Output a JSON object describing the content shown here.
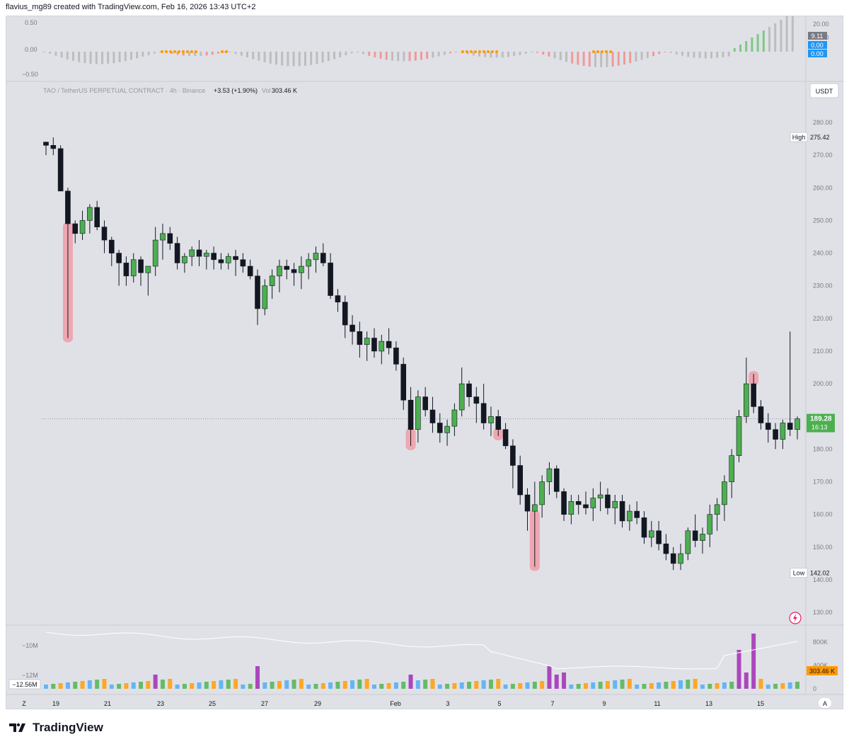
{
  "header": {
    "attribution": "flavius_mg89 created with TradingView.com, Feb 16, 2026 13:43 UTC+2"
  },
  "footer": {
    "brand": "TradingView"
  },
  "oscillator": {
    "y_ticks": [
      "0.50",
      "0.00",
      "−0.50"
    ],
    "right_ticks": [
      "20.00",
      "10.00",
      "0.00"
    ],
    "badges": [
      {
        "text": "9.11",
        "color": "#787b86"
      },
      {
        "text": "0.00",
        "color": "#2196f3"
      },
      {
        "text": "0.00",
        "color": "#2196f3"
      }
    ]
  },
  "legend": {
    "symbol": "TAO / TetherUS PERPETUAL CONTRACT · 4h · Binance",
    "change": "+3.53 (+1.90%)",
    "vol_label": "Vol",
    "vol_value": "303.46 K"
  },
  "price_axis": {
    "currency": "USDT",
    "ticks": [
      "280.00",
      "270.00",
      "260.00",
      "250.00",
      "240.00",
      "230.00",
      "220.00",
      "210.00",
      "200.00",
      "190.00",
      "180.00",
      "170.00",
      "160.00",
      "150.00",
      "140.00",
      "130.00"
    ],
    "high_label": "High",
    "high_value": "275.42",
    "low_label": "Low",
    "low_value": "142.02",
    "last_price": "189.28",
    "countdown": "16:13"
  },
  "volume_pane": {
    "left_ticks": [
      "−10M",
      "−12M"
    ],
    "left_badge": "−12.56M",
    "right_ticks": [
      "800K",
      "400K",
      "0"
    ],
    "right_badge": "303.46 K"
  },
  "time_axis": {
    "left_button": "Z",
    "right_button": "A",
    "labels": [
      "19",
      "21",
      "23",
      "25",
      "27",
      "29",
      "Feb",
      "3",
      "5",
      "7",
      "9",
      "11",
      "13",
      "15"
    ]
  },
  "colors": {
    "up": "#4caf50",
    "down": "#131722",
    "highlight": "#f19ca7",
    "volume_purple": "#ab47bc",
    "volume_orange": "#ffa726",
    "volume_blue": "#64b5f6",
    "volume_green": "#66bb6a"
  },
  "chart_data": {
    "type": "candlestick",
    "timeframe": "4h",
    "x_range": [
      "Jan 18",
      "Feb 16"
    ],
    "ylim": [
      130,
      285
    ],
    "grid": false,
    "high": 275.42,
    "low": 142.02,
    "last": 189.28,
    "candles": [
      [
        274,
        274,
        270,
        273
      ],
      [
        273,
        275.42,
        270,
        272
      ],
      [
        272,
        273,
        259,
        259
      ],
      [
        259,
        260,
        214,
        249
      ],
      [
        249,
        250,
        243,
        246
      ],
      [
        246,
        253,
        244,
        250
      ],
      [
        250,
        255,
        246,
        254
      ],
      [
        254,
        256,
        247,
        248
      ],
      [
        248,
        250,
        240,
        244
      ],
      [
        244,
        245,
        236,
        240
      ],
      [
        240,
        241,
        230,
        237
      ],
      [
        237,
        239,
        230,
        233
      ],
      [
        233,
        240,
        231,
        238
      ],
      [
        238,
        239,
        230,
        234
      ],
      [
        234,
        236,
        227,
        236
      ],
      [
        236,
        248,
        233,
        244
      ],
      [
        244,
        249,
        238,
        246
      ],
      [
        246,
        248,
        241,
        243
      ],
      [
        243,
        245,
        235,
        237
      ],
      [
        237,
        240,
        234,
        239
      ],
      [
        239,
        242,
        236,
        241
      ],
      [
        241,
        244,
        236,
        239
      ],
      [
        239,
        241,
        235,
        240
      ],
      [
        240,
        242,
        235,
        238
      ],
      [
        238,
        240,
        235,
        237
      ],
      [
        237,
        240,
        235,
        239
      ],
      [
        239,
        241,
        233,
        238
      ],
      [
        238,
        240,
        234,
        236
      ],
      [
        236,
        238,
        232,
        233
      ],
      [
        233,
        235,
        218,
        223
      ],
      [
        223,
        232,
        221,
        230
      ],
      [
        230,
        235,
        226,
        233
      ],
      [
        233,
        238,
        228,
        236
      ],
      [
        236,
        238,
        232,
        235
      ],
      [
        235,
        237,
        230,
        234
      ],
      [
        234,
        239,
        229,
        236
      ],
      [
        236,
        240,
        232,
        238
      ],
      [
        238,
        242,
        234,
        240
      ],
      [
        240,
        243,
        236,
        237
      ],
      [
        237,
        240,
        226,
        227
      ],
      [
        227,
        229,
        222,
        225
      ],
      [
        225,
        227,
        214,
        218
      ],
      [
        218,
        221,
        212,
        216
      ],
      [
        216,
        219,
        208,
        212
      ],
      [
        212,
        216,
        207,
        214
      ],
      [
        214,
        217,
        208,
        210
      ],
      [
        210,
        215,
        206,
        213
      ],
      [
        213,
        217,
        209,
        211
      ],
      [
        211,
        213,
        204,
        206
      ],
      [
        206,
        208,
        192,
        195
      ],
      [
        195,
        199,
        181,
        186
      ],
      [
        186,
        198,
        182,
        196
      ],
      [
        196,
        199,
        190,
        192
      ],
      [
        192,
        196,
        185,
        188
      ],
      [
        188,
        191,
        182,
        185
      ],
      [
        185,
        189,
        181,
        187
      ],
      [
        187,
        194,
        184,
        192
      ],
      [
        192,
        205,
        190,
        200
      ],
      [
        200,
        201,
        193,
        196
      ],
      [
        196,
        199,
        188,
        194
      ],
      [
        194,
        200,
        186,
        188
      ],
      [
        188,
        193,
        184,
        190
      ],
      [
        190,
        192,
        184,
        186
      ],
      [
        186,
        188,
        180,
        181
      ],
      [
        181,
        183,
        168,
        175
      ],
      [
        175,
        178,
        163,
        166
      ],
      [
        166,
        168,
        155,
        161
      ],
      [
        161,
        170,
        144,
        163
      ],
      [
        163,
        172,
        159,
        170
      ],
      [
        170,
        176,
        166,
        174
      ],
      [
        174,
        175,
        165,
        167
      ],
      [
        167,
        168,
        158,
        160
      ],
      [
        160,
        166,
        157,
        164
      ],
      [
        164,
        166,
        160,
        163
      ],
      [
        163,
        167,
        160,
        162
      ],
      [
        162,
        168,
        158,
        165
      ],
      [
        165,
        170,
        161,
        166
      ],
      [
        166,
        168,
        160,
        162
      ],
      [
        162,
        166,
        157,
        164
      ],
      [
        164,
        166,
        156,
        158
      ],
      [
        158,
        163,
        155,
        161
      ],
      [
        161,
        164,
        157,
        159
      ],
      [
        159,
        161,
        151,
        153
      ],
      [
        153,
        158,
        150,
        155
      ],
      [
        155,
        158,
        149,
        151
      ],
      [
        151,
        154,
        146,
        148
      ],
      [
        148,
        150,
        143,
        145
      ],
      [
        145,
        151,
        143,
        148
      ],
      [
        148,
        156,
        146,
        155
      ],
      [
        155,
        160,
        150,
        152
      ],
      [
        152,
        156,
        148,
        154
      ],
      [
        154,
        163,
        150,
        160
      ],
      [
        160,
        165,
        155,
        163
      ],
      [
        163,
        172,
        158,
        170
      ],
      [
        170,
        180,
        165,
        178
      ],
      [
        178,
        192,
        176,
        190
      ],
      [
        190,
        208,
        188,
        200
      ],
      [
        200,
        203,
        191,
        193
      ],
      [
        193,
        195,
        186,
        188
      ],
      [
        188,
        191,
        182,
        186
      ],
      [
        186,
        188,
        180,
        183
      ],
      [
        183,
        189,
        180,
        188
      ],
      [
        188,
        216,
        184,
        186
      ],
      [
        186,
        190,
        183,
        189.28
      ]
    ],
    "annotations": [
      "wick highlight near Jan 18",
      "wick highlight near Feb 1",
      "wick highlight near Feb 3",
      "wick highlight near Feb 6",
      "wick highlight near Feb 16"
    ],
    "oscillator_note": "histogram oscillator pane, values between -0.5 and 0.5 with last readings 9.11, 0.00, 0.00"
  }
}
